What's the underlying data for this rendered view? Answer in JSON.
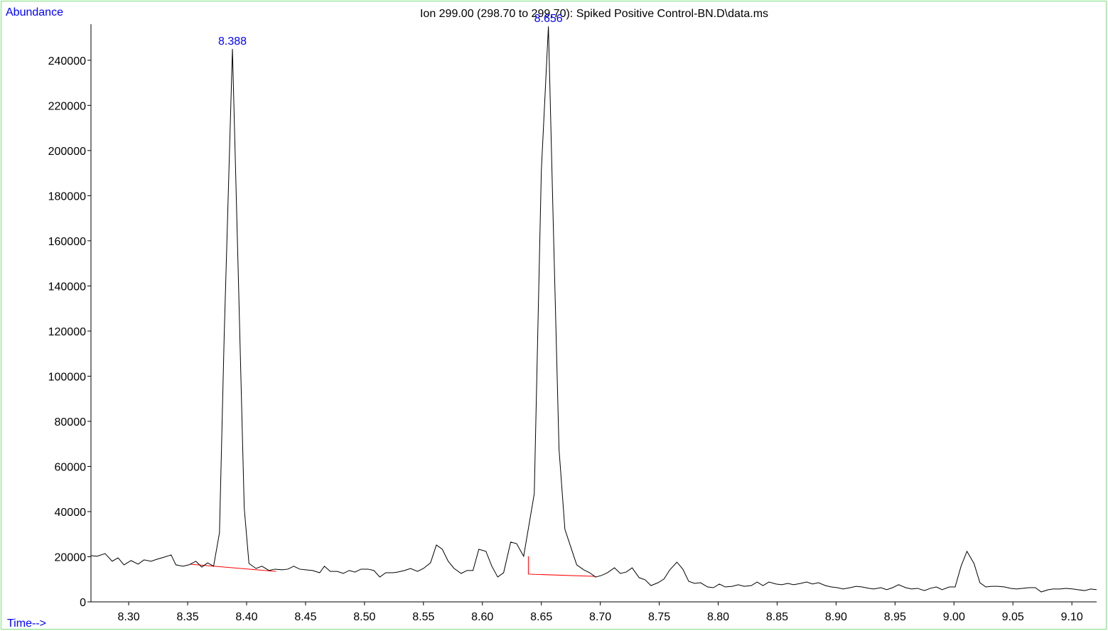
{
  "chart_data": {
    "type": "line",
    "title": "Ion 299.00 (298.70 to 299.70): Spiked Positive Control-BN.D\\data.ms",
    "y_label": "Abundance",
    "x_label": "Time-->",
    "color": "#000000",
    "xlim": [
      8.268,
      9.121
    ],
    "ylim": [
      0,
      256000
    ],
    "xticks": [
      {
        "value": 8.3,
        "label": "8.30"
      },
      8.35,
      {
        "value": 8.4,
        "label": "8.40"
      },
      8.45,
      {
        "value": 8.5,
        "label": "8.50"
      },
      8.55,
      {
        "value": 8.6,
        "label": "8.60"
      },
      8.65,
      {
        "value": 8.7,
        "label": "8.70"
      },
      8.75,
      {
        "value": 8.8,
        "label": "8.80"
      },
      8.85,
      {
        "value": 8.9,
        "label": "8.90"
      },
      8.95,
      {
        "value": 9.0,
        "label": "9.00"
      },
      9.05,
      {
        "value": 9.1,
        "label": "9.10"
      }
    ],
    "yticks": [
      0,
      20000,
      40000,
      60000,
      80000,
      100000,
      120000,
      140000,
      160000,
      180000,
      200000,
      220000,
      240000
    ],
    "x": [
      8.268,
      8.273,
      8.28,
      8.286,
      8.291,
      8.296,
      8.302,
      8.308,
      8.313,
      8.319,
      8.324,
      8.33,
      8.336,
      8.34,
      8.346,
      8.351,
      8.357,
      8.362,
      8.367,
      8.372,
      8.377,
      8.381,
      8.388,
      8.393,
      8.398,
      8.402,
      8.408,
      8.413,
      8.419,
      8.424,
      8.43,
      8.435,
      8.44,
      8.445,
      8.45,
      8.456,
      8.462,
      8.466,
      8.471,
      8.477,
      8.482,
      8.487,
      8.492,
      8.497,
      8.503,
      8.508,
      8.513,
      8.518,
      8.524,
      8.528,
      8.534,
      8.539,
      8.545,
      8.55,
      8.556,
      8.561,
      8.566,
      8.571,
      8.576,
      8.582,
      8.587,
      8.592,
      8.597,
      8.603,
      8.608,
      8.613,
      8.618,
      8.624,
      8.629,
      8.635,
      8.644,
      8.65,
      8.656,
      8.66,
      8.665,
      8.67,
      8.676,
      8.68,
      8.686,
      8.691,
      8.696,
      8.701,
      8.706,
      8.712,
      8.717,
      8.722,
      8.727,
      8.733,
      8.738,
      8.743,
      8.749,
      8.754,
      8.759,
      8.765,
      8.77,
      8.775,
      8.78,
      8.785,
      8.791,
      8.796,
      8.801,
      8.806,
      8.812,
      8.817,
      8.822,
      8.828,
      8.833,
      8.838,
      8.843,
      8.849,
      8.854,
      8.859,
      8.864,
      8.87,
      8.875,
      8.88,
      8.885,
      8.891,
      8.896,
      8.901,
      8.906,
      8.912,
      8.917,
      8.922,
      8.928,
      8.932,
      8.938,
      8.943,
      8.948,
      8.953,
      8.959,
      8.964,
      8.969,
      8.975,
      8.98,
      8.985,
      8.99,
      8.996,
      9.001,
      9.006,
      9.011,
      9.017,
      9.022,
      9.027,
      9.032,
      9.037,
      9.043,
      9.048,
      9.053,
      9.058,
      9.064,
      9.069,
      9.074,
      9.08,
      9.084,
      9.09,
      9.095,
      9.101,
      9.105,
      9.111,
      9.116,
      9.121
    ],
    "values": [
      20500,
      20200,
      21400,
      18000,
      19500,
      16400,
      18300,
      16700,
      18600,
      18000,
      18900,
      19800,
      20800,
      16400,
      15800,
      16400,
      18000,
      15400,
      17300,
      15800,
      30600,
      118000,
      245000,
      144000,
      41600,
      17000,
      14800,
      15800,
      13900,
      14500,
      14200,
      14500,
      15800,
      14500,
      14200,
      13900,
      12900,
      15800,
      13500,
      13500,
      12600,
      13900,
      13200,
      14500,
      14500,
      13900,
      11000,
      12900,
      12900,
      13200,
      13900,
      14800,
      13500,
      14800,
      17300,
      25200,
      23300,
      18000,
      14800,
      12600,
      13900,
      13900,
      23300,
      22400,
      15800,
      11000,
      12900,
      26500,
      25800,
      20200,
      47900,
      191000,
      255000,
      170000,
      67700,
      32100,
      22700,
      16400,
      14200,
      12900,
      11000,
      11700,
      12900,
      15100,
      12600,
      13200,
      15100,
      10700,
      9800,
      7200,
      8500,
      10100,
      14200,
      17600,
      14500,
      9100,
      8200,
      8500,
      6600,
      6300,
      7900,
      6600,
      6900,
      7600,
      6900,
      7200,
      8800,
      7200,
      8800,
      7900,
      7600,
      8200,
      7600,
      8200,
      8800,
      7900,
      8500,
      7200,
      6600,
      6300,
      5700,
      6300,
      6900,
      6600,
      6000,
      5700,
      6300,
      5400,
      6300,
      7600,
      6300,
      5700,
      6000,
      5000,
      6000,
      6600,
      5400,
      6600,
      6600,
      15800,
      22400,
      17000,
      8500,
      6600,
      6900,
      6900,
      6600,
      6000,
      5700,
      6000,
      6300,
      6300,
      4400,
      5400,
      5700,
      5700,
      6000,
      5700,
      5400,
      5000,
      5700,
      5400
    ],
    "annotations": [
      {
        "text": "8.388",
        "x": 8.388,
        "y": 245000
      },
      {
        "text": "8.656",
        "x": 8.656,
        "y": 255000
      }
    ],
    "baselines": [
      {
        "color": "#ff0000",
        "x": [
          8.352,
          8.425
        ],
        "y": [
          16700,
          13500
        ]
      },
      {
        "color": "#ff0000",
        "x": [
          8.639,
          8.639,
          8.696
        ],
        "y": [
          20200,
          12300,
          11300
        ]
      }
    ]
  }
}
